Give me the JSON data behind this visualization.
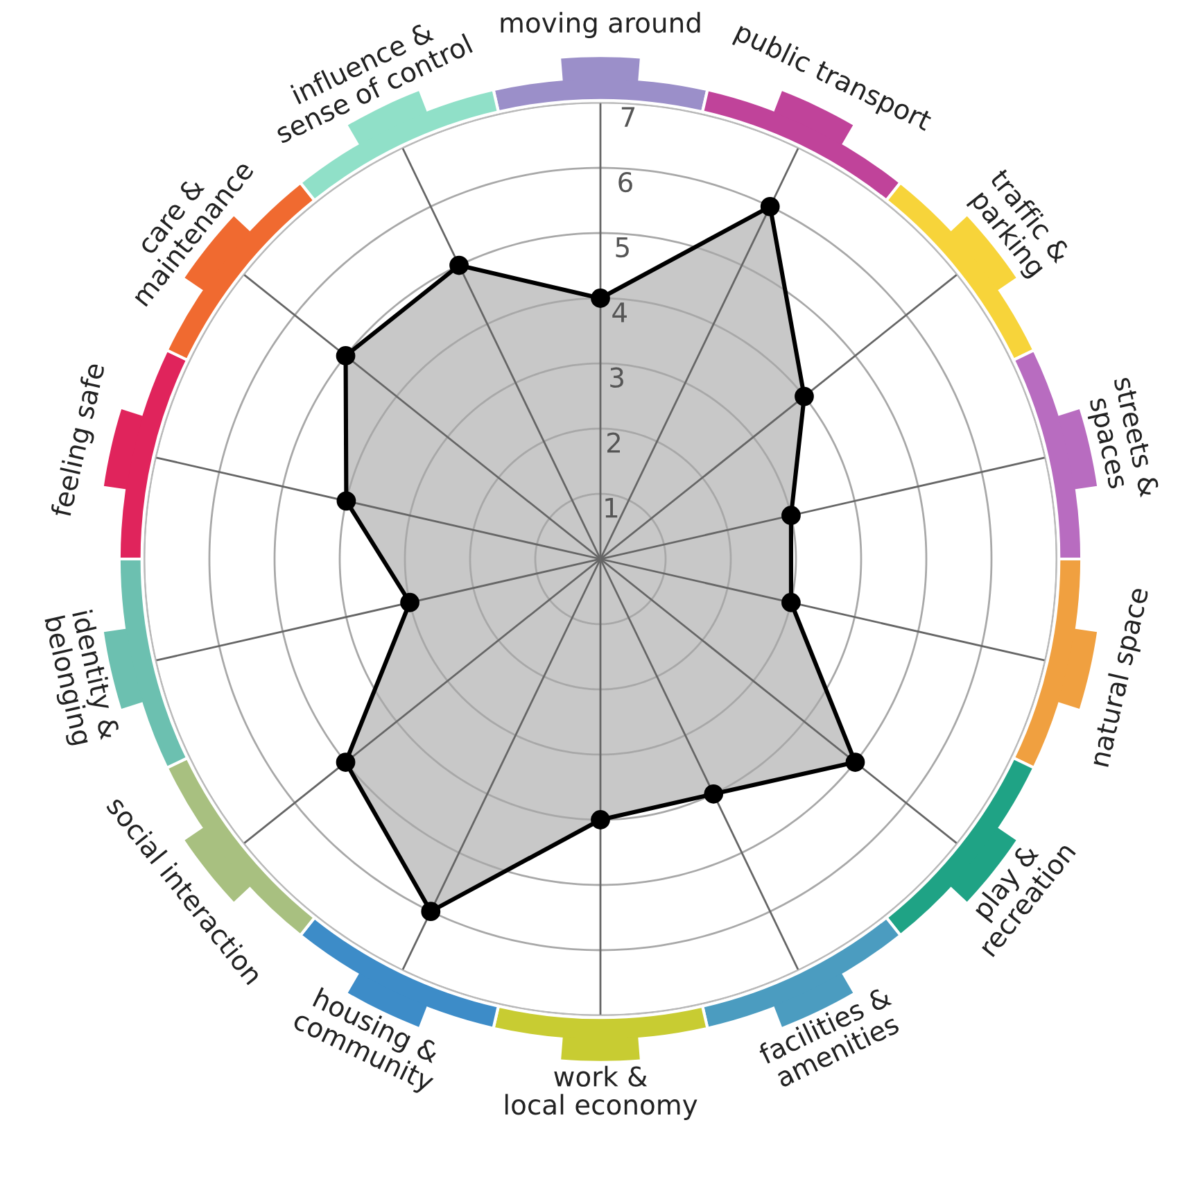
{
  "chart_data": {
    "type": "radar",
    "categories": [
      "moving around",
      "public transport",
      "traffic &\nparking",
      "streets &\nspaces",
      "natural space",
      "play &\nrecreation",
      "facilities &\namenities",
      "work &\nlocal economy",
      "housing &\ncommunity",
      "social interaction",
      "identity &\nbelonging",
      "feeling safe",
      "care &\nmaintenance",
      "influence &\nsense of control"
    ],
    "colors": [
      "#9b8fc9",
      "#c0439a",
      "#f7d43a",
      "#b86cc0",
      "#f0a040",
      "#1fa385",
      "#4b9cc0",
      "#c8cc32",
      "#3d8cc8",
      "#a8c080",
      "#6cc0b0",
      "#e0245c",
      "#f06a30",
      "#90e0c8"
    ],
    "series": [
      {
        "color": "#000000",
        "values": [
          4,
          6,
          4,
          3,
          3,
          5,
          4,
          4,
          6,
          5,
          3,
          4,
          5,
          5
        ]
      }
    ],
    "ylim": [
      0,
      7
    ],
    "yticks": [
      1,
      2,
      3,
      4,
      5,
      6,
      7
    ],
    "marker": "circle",
    "line_style": "solid",
    "grid": true
  }
}
